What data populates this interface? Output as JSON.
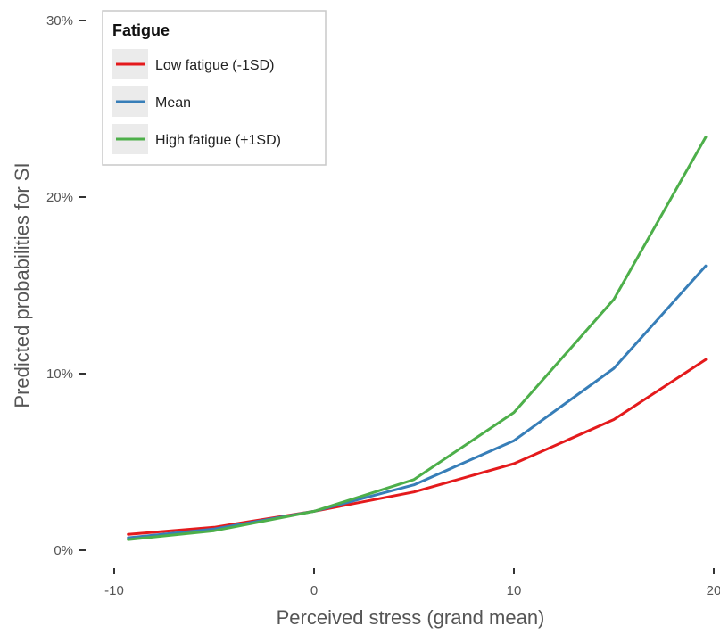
{
  "chart_data": {
    "type": "line",
    "xlabel": "Perceived stress (grand mean)",
    "ylabel": "Predicted probabilities for SI",
    "xlim": [
      -9.3,
      19.6
    ],
    "ylim": [
      0,
      30
    ],
    "x_ticks": [
      -10,
      0,
      10,
      20
    ],
    "x_tick_labels": [
      "-10",
      "0",
      "10",
      "20"
    ],
    "y_ticks": [
      0,
      10,
      20,
      30
    ],
    "y_tick_labels": [
      "0%",
      "10%",
      "20%",
      "30%"
    ],
    "grid": false,
    "legend": {
      "title": "Fatigue",
      "position": "top-left"
    },
    "series": [
      {
        "name": "Low fatigue (-1SD)",
        "color": "#e41a1c",
        "x": [
          -9.3,
          -5,
          0,
          5,
          10,
          15,
          19.6
        ],
        "y": [
          0.9,
          1.3,
          2.2,
          3.3,
          4.9,
          7.4,
          10.8
        ]
      },
      {
        "name": "Mean",
        "color": "#377eb8",
        "x": [
          -9.3,
          -5,
          0,
          5,
          10,
          15,
          19.6
        ],
        "y": [
          0.7,
          1.2,
          2.2,
          3.7,
          6.2,
          10.3,
          16.1
        ]
      },
      {
        "name": "High fatigue (+1SD)",
        "color": "#4daf4a",
        "x": [
          -9.3,
          -5,
          0,
          5,
          10,
          15,
          19.6
        ],
        "y": [
          0.6,
          1.1,
          2.2,
          4.0,
          7.8,
          14.2,
          23.4
        ]
      }
    ]
  }
}
